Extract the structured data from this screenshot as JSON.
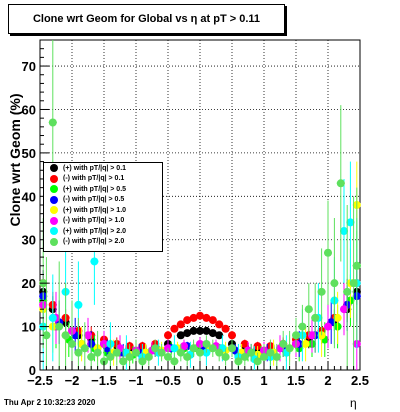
{
  "title": "Clone wrt Geom for Global vs   η at pT > 0.11",
  "footer": "Thu Apr  2 10:32:23 2020",
  "chart_data": {
    "type": "scatter",
    "title": "Clone wrt Geom for Global vs   η at pT > 0.11",
    "xlabel": "η",
    "ylabel": "Clone wrt Geom (%)",
    "xlim": [
      -2.5,
      2.5
    ],
    "ylim": [
      0,
      76
    ],
    "grid": true,
    "legend_position": "left-middle",
    "x_ticks": [
      "−2.5",
      "−2",
      "−1.5",
      "−1",
      "−0.5",
      "0",
      "0.5",
      "1",
      "1.5",
      "2",
      "2.5"
    ],
    "y_ticks": [
      "0",
      "10",
      "20",
      "30",
      "40",
      "50",
      "60",
      "70"
    ],
    "series": [
      {
        "name": "(+) with pT/|q| > 0.1",
        "color": "#000000",
        "x": [
          -2.45,
          -2.3,
          -2.1,
          -1.9,
          -1.7,
          -1.5,
          -1.3,
          -1.1,
          -0.9,
          -0.7,
          -0.5,
          -0.3,
          -0.2,
          -0.1,
          0,
          0.1,
          0.2,
          0.3,
          0.5,
          0.7,
          0.9,
          1.1,
          1.3,
          1.5,
          1.7,
          1.9,
          2.1,
          2.3,
          2.45
        ],
        "y": [
          18,
          14,
          11,
          8,
          7,
          6,
          5.5,
          5,
          5,
          5.5,
          6,
          8,
          8.5,
          9,
          9,
          9,
          8.5,
          8,
          6,
          5.5,
          5,
          5,
          5.5,
          6,
          7,
          8,
          11,
          14,
          18
        ],
        "err": [
          3,
          3,
          2,
          2,
          2,
          1.5,
          1.5,
          1,
          1,
          1,
          1,
          0.5,
          0.5,
          0.5,
          0.5,
          0.5,
          0.5,
          0.5,
          1,
          1,
          1,
          1,
          1.5,
          1.5,
          2,
          2,
          2,
          3,
          3
        ]
      },
      {
        "name": "(-) with pT/|q| > 0.1",
        "color": "#ff0000",
        "x": [
          -2.45,
          -2.3,
          -2.1,
          -1.9,
          -1.7,
          -1.5,
          -1.3,
          -1.1,
          -0.9,
          -0.7,
          -0.5,
          -0.4,
          -0.3,
          -0.2,
          -0.1,
          0,
          0.1,
          0.2,
          0.3,
          0.4,
          0.5,
          0.7,
          0.9,
          1.1,
          1.3,
          1.5,
          1.7,
          1.9,
          2.1,
          2.3,
          2.45
        ],
        "y": [
          20,
          15,
          12,
          9,
          8,
          7,
          6,
          5.5,
          5.5,
          6,
          8,
          9.5,
          10.5,
          11.5,
          12,
          12.5,
          12,
          11.5,
          10.5,
          9.5,
          8,
          6,
          5.5,
          5.5,
          6,
          7,
          8,
          9,
          12,
          15,
          20
        ],
        "err": [
          3,
          3,
          2,
          2,
          2,
          1.5,
          1.5,
          1,
          1,
          1,
          1,
          0.5,
          0.5,
          0.5,
          0.5,
          0.5,
          0.5,
          0.5,
          0.5,
          0.5,
          1,
          1,
          1,
          1,
          1.5,
          1.5,
          2,
          2,
          2,
          3,
          3
        ]
      },
      {
        "name": "(+) with pT/|q| > 0.5",
        "color": "#00ff00",
        "x": [
          -2.45,
          -2.25,
          -2.05,
          -1.85,
          -1.65,
          -1.45,
          -1.25,
          -1.05,
          -0.85,
          -0.65,
          -0.45,
          -0.25,
          -0.05,
          0.15,
          0.35,
          0.55,
          0.75,
          0.95,
          1.15,
          1.35,
          1.55,
          1.75,
          1.95,
          2.15,
          2.35,
          2.45
        ],
        "y": [
          16,
          10,
          7,
          6,
          5,
          4,
          4,
          3.5,
          4,
          4.5,
          5,
          5,
          5,
          5,
          5,
          4.5,
          4,
          3.5,
          4,
          4,
          5,
          6,
          7,
          10,
          16,
          24
        ],
        "err": [
          6,
          5,
          4,
          3,
          3,
          2,
          2,
          2,
          2,
          1.5,
          1.5,
          1,
          1,
          1,
          1,
          1.5,
          2,
          2,
          2,
          2,
          3,
          3,
          4,
          5,
          6,
          8
        ]
      },
      {
        "name": "(-) with pT/|q| > 0.5",
        "color": "#0000ff",
        "x": [
          -2.45,
          -2.2,
          -1.95,
          -1.7,
          -1.45,
          -1.2,
          -0.95,
          -0.7,
          -0.45,
          -0.2,
          0.05,
          0.3,
          0.55,
          0.8,
          1.05,
          1.3,
          1.55,
          1.8,
          2.05,
          2.3,
          2.45
        ],
        "y": [
          17,
          11,
          8,
          6,
          5,
          4,
          4,
          4.5,
          5,
          5.5,
          5.5,
          5,
          4.5,
          4,
          4,
          5,
          6,
          8,
          11,
          15,
          17
        ],
        "err": [
          6,
          5,
          4,
          3,
          2,
          2,
          2,
          1.5,
          1,
          1,
          1,
          1,
          1.5,
          2,
          2,
          2,
          3,
          4,
          5,
          6,
          6
        ]
      },
      {
        "name": "(+) with pT/|q| > 1.0",
        "color": "#ffff00",
        "x": [
          -2.45,
          -2.3,
          -2.1,
          -1.85,
          -1.6,
          -1.35,
          -1.1,
          -0.85,
          -0.6,
          -0.35,
          -0.1,
          0.15,
          0.4,
          0.65,
          0.9,
          1.15,
          1.4,
          1.65,
          1.9,
          2.15,
          2.35,
          2.45
        ],
        "y": [
          14,
          10,
          8,
          6,
          5,
          4,
          3.5,
          4,
          4.5,
          5,
          5,
          5,
          4.5,
          4,
          3.5,
          4,
          5,
          6,
          8,
          12,
          20,
          38
        ],
        "err": [
          7,
          6,
          5,
          4,
          3,
          3,
          2,
          2,
          2,
          1.5,
          1.5,
          1.5,
          2,
          2,
          2,
          3,
          3,
          4,
          5,
          6,
          8,
          10
        ]
      },
      {
        "name": "(-) with pT/|q| > 1.0",
        "color": "#ff00ff",
        "x": [
          -2.45,
          -2.25,
          -2.0,
          -1.75,
          -1.5,
          -1.25,
          -1.0,
          -0.75,
          -0.5,
          -0.25,
          0,
          0.25,
          0.5,
          0.75,
          1.0,
          1.25,
          1.5,
          1.75,
          2.0,
          2.25,
          2.45
        ],
        "y": [
          15,
          12,
          9,
          8,
          6,
          5,
          4.5,
          4.5,
          5,
          5.5,
          6,
          5.5,
          5,
          4.5,
          4.5,
          5,
          6,
          8,
          10,
          14,
          6
        ],
        "err": [
          7,
          6,
          5,
          4,
          3,
          3,
          2,
          2,
          2,
          1.5,
          1.5,
          1.5,
          2,
          2,
          2,
          3,
          3,
          4,
          5,
          6,
          7
        ]
      },
      {
        "name": "(+) with pT/|q| > 2.0",
        "color": "#00ffff",
        "x": [
          -2.45,
          -2.3,
          -2.1,
          -1.9,
          -1.65,
          -1.4,
          -1.15,
          -0.9,
          -0.65,
          -0.4,
          -0.15,
          0.1,
          0.35,
          0.6,
          0.85,
          1.1,
          1.35,
          1.6,
          1.85,
          2.1,
          2.25,
          2.35,
          2.45
        ],
        "y": [
          10,
          12,
          18,
          15,
          25,
          6,
          4,
          3,
          4,
          5,
          3.5,
          4,
          5,
          3,
          2.5,
          3,
          4,
          8,
          12,
          16,
          32,
          34,
          20
        ],
        "err": [
          10,
          10,
          10,
          10,
          10,
          5,
          4,
          3,
          3,
          3,
          3,
          3,
          3,
          3,
          3,
          3,
          4,
          6,
          8,
          10,
          12,
          14,
          15
        ]
      },
      {
        "name": "(-) with pT/|q| > 2.0",
        "color": "#5ee05e",
        "x": [
          -2.45,
          -2.4,
          -2.3,
          -2.2,
          -2.1,
          -2.0,
          -1.9,
          -1.8,
          -1.7,
          -1.6,
          -1.5,
          -1.4,
          -1.3,
          -1.2,
          -1.1,
          -1.0,
          -0.9,
          -0.8,
          -0.7,
          -0.6,
          -0.5,
          -0.4,
          -0.3,
          -0.2,
          -0.1,
          0,
          0.1,
          0.2,
          0.3,
          0.4,
          0.5,
          0.6,
          0.7,
          0.8,
          0.9,
          1.0,
          1.1,
          1.2,
          1.3,
          1.4,
          1.5,
          1.6,
          1.7,
          1.8,
          1.9,
          2.0,
          2.1,
          2.2,
          2.3,
          2.4,
          2.45
        ],
        "y": [
          20,
          8,
          57,
          10,
          8,
          6,
          4,
          5,
          3,
          4,
          2,
          3,
          4,
          2,
          3,
          4,
          2,
          3,
          5,
          4,
          3,
          2,
          4,
          3,
          5,
          4,
          6,
          5,
          4,
          3,
          5,
          2,
          3,
          4,
          2,
          3,
          4,
          3,
          6,
          5,
          8,
          10,
          14,
          12,
          18,
          27,
          20,
          43,
          18,
          20,
          24
        ],
        "err": [
          15,
          18,
          20,
          15,
          12,
          10,
          8,
          6,
          5,
          5,
          4,
          4,
          3,
          3,
          3,
          3,
          2,
          2,
          2,
          2,
          2,
          2,
          2,
          2,
          2,
          2,
          2,
          2,
          2,
          2,
          2,
          2,
          2,
          2,
          2,
          3,
          3,
          3,
          3,
          4,
          4,
          5,
          6,
          8,
          10,
          12,
          15,
          18,
          20,
          20,
          18
        ]
      }
    ]
  }
}
